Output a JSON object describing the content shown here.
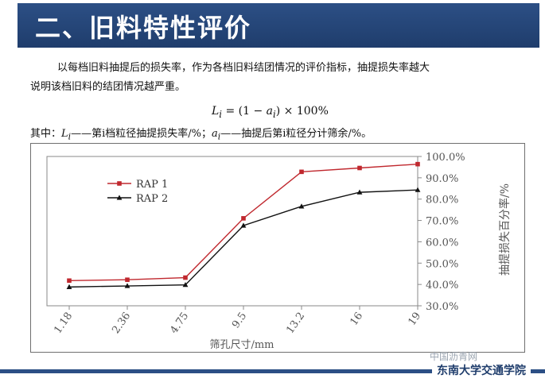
{
  "slide": {
    "title": "二、旧料特性评价",
    "intro_line1": "以每档旧料抽提后的损失率，作为各档旧料结团情况的评价指标，抽提损失率越大",
    "intro_line2": "说明该档旧料的结团情况越严重。",
    "formula": {
      "lhs": "L",
      "lhs_sub": "i",
      "mid": " = (1 − ",
      "var": "a",
      "var_sub": "i",
      "rhs": ") × 100%"
    },
    "where": {
      "prefix": "其中：",
      "L": "L",
      "L_sub": "i",
      "L_desc": "——第i档粒径抽提损失率/%；",
      "a": "a",
      "a_sub": "i",
      "a_desc": "——抽提后第i粒径分计筛余/%。"
    },
    "school_name": "东南大学交通学院",
    "watermark_text": "中国沥青网"
  },
  "chart_data": {
    "type": "line",
    "categories": [
      "1.18",
      "2.36",
      "4.75",
      "9.5",
      "13.2",
      "16",
      "19"
    ],
    "series": [
      {
        "name": "RAP 1",
        "color": "#c0282e",
        "marker": "square",
        "values": [
          41.8,
          42.2,
          43.2,
          71.0,
          92.8,
          94.6,
          96.4
        ]
      },
      {
        "name": "RAP 2",
        "color": "#111111",
        "marker": "triangle",
        "values": [
          38.8,
          39.3,
          39.8,
          67.6,
          76.6,
          83.2,
          84.3
        ]
      }
    ],
    "ylim": [
      30,
      100
    ],
    "yticks": [
      "30.0%",
      "40.0%",
      "50.0%",
      "60.0%",
      "70.0%",
      "80.0%",
      "90.0%",
      "100.0%"
    ],
    "xlabel": "筛孔尺寸/mm",
    "ylabel": "抽提损失百分率/%",
    "legend_position": "top-left",
    "grid": false
  }
}
